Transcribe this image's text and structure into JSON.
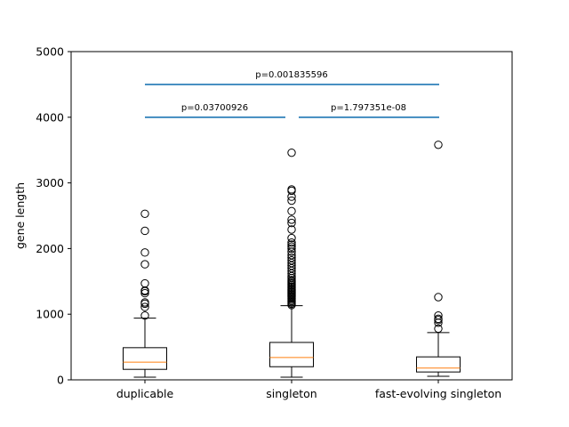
{
  "chart_data": {
    "type": "boxplot",
    "title": "",
    "xlabel": "",
    "ylabel": "gene length",
    "ylim": [
      0,
      5000
    ],
    "yticks": [
      0,
      1000,
      2000,
      3000,
      4000,
      5000
    ],
    "yticklabels": [
      "0",
      "1000",
      "2000",
      "3000",
      "4000",
      "5000"
    ],
    "grid": false,
    "categories": [
      "duplicable",
      "singleton",
      "fast-evolving singleton"
    ],
    "boxes": [
      {
        "category": "duplicable",
        "whisker_low": 40,
        "q1": 160,
        "median": 270,
        "q3": 490,
        "whisker_high": 940,
        "outliers": [
          980,
          1110,
          1160,
          1180,
          1320,
          1350,
          1360,
          1470,
          1760,
          1940,
          2270,
          2530
        ]
      },
      {
        "category": "singleton",
        "whisker_low": 40,
        "q1": 200,
        "median": 340,
        "q3": 570,
        "whisker_high": 1130,
        "outliers": [
          1140,
          1160,
          1180,
          1200,
          1220,
          1240,
          1260,
          1280,
          1300,
          1320,
          1340,
          1360,
          1380,
          1400,
          1420,
          1440,
          1460,
          1480,
          1500,
          1520,
          1550,
          1580,
          1620,
          1660,
          1700,
          1740,
          1780,
          1820,
          1860,
          1900,
          1950,
          2000,
          2030,
          2060,
          2090,
          2160,
          2290,
          2390,
          2440,
          2570,
          2730,
          2790,
          2880,
          2900,
          3460
        ]
      },
      {
        "category": "fast-evolving singleton",
        "whisker_low": 55,
        "q1": 120,
        "median": 180,
        "q3": 350,
        "whisker_high": 720,
        "outliers": [
          780,
          870,
          910,
          930,
          980,
          1260,
          3580
        ]
      }
    ],
    "comparisons": [
      {
        "from": "duplicable",
        "to": "fast-evolving singleton",
        "y": 4500,
        "label": "p=0.001835596"
      },
      {
        "from": "duplicable",
        "to": "singleton",
        "y": 4000,
        "label": "p=0.03700926"
      },
      {
        "from": "singleton",
        "to": "fast-evolving singleton",
        "y": 4000,
        "label": "p=1.797351e-08"
      }
    ],
    "colors": {
      "box": "#000000",
      "median": "#ff7f0e",
      "outlier": "#000000",
      "comparison_line": "#1f77b4"
    }
  }
}
